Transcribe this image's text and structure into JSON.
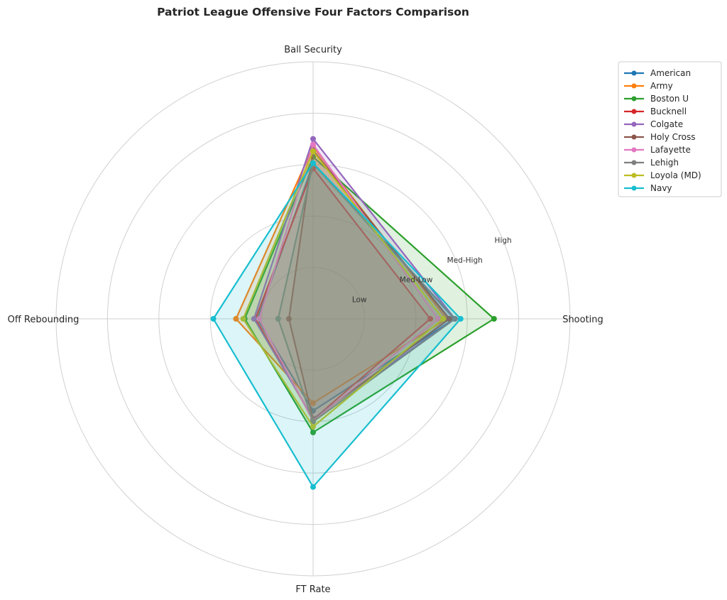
{
  "chart_data": {
    "type": "radar",
    "title": "Patriot League Offensive Four Factors Comparison",
    "axes": [
      "Shooting",
      "Ball Security",
      "Off Rebounding",
      "FT Rate"
    ],
    "rlim": [
      0,
      5
    ],
    "ring_labels": [
      {
        "value": 1,
        "label": "Low"
      },
      {
        "value": 2,
        "label": "Med-Low"
      },
      {
        "value": 3,
        "label": "Med-High"
      },
      {
        "value": 4,
        "label": "High"
      }
    ],
    "grid": true,
    "legend_position": "upper-right-outside",
    "series": [
      {
        "name": "American",
        "color": "#1f77b4",
        "values": [
          2.75,
          3.02,
          1.08,
          1.79
        ]
      },
      {
        "name": "Army",
        "color": "#ff7f0e",
        "values": [
          2.6,
          3.35,
          1.5,
          1.64
        ]
      },
      {
        "name": "Boston U",
        "color": "#2ca02c",
        "values": [
          3.52,
          3.15,
          1.33,
          2.21
        ]
      },
      {
        "name": "Bucknell",
        "color": "#d62728",
        "values": [
          2.28,
          2.93,
          1.12,
          1.96
        ]
      },
      {
        "name": "Colgate",
        "color": "#9467bd",
        "values": [
          2.76,
          3.5,
          1.15,
          1.94
        ]
      },
      {
        "name": "Holy Cross",
        "color": "#8c564b",
        "values": [
          2.65,
          3.28,
          0.47,
          1.96
        ]
      },
      {
        "name": "Lafayette",
        "color": "#e377c2",
        "values": [
          2.43,
          3.39,
          1.05,
          1.99
        ]
      },
      {
        "name": "Lehigh",
        "color": "#7f7f7f",
        "values": [
          2.76,
          3.02,
          0.68,
          2.0
        ]
      },
      {
        "name": "Loyola (MD)",
        "color": "#bcbd22",
        "values": [
          2.53,
          3.26,
          1.36,
          2.1
        ]
      },
      {
        "name": "Navy",
        "color": "#17becf",
        "values": [
          2.87,
          3.03,
          1.94,
          3.27
        ]
      }
    ]
  }
}
